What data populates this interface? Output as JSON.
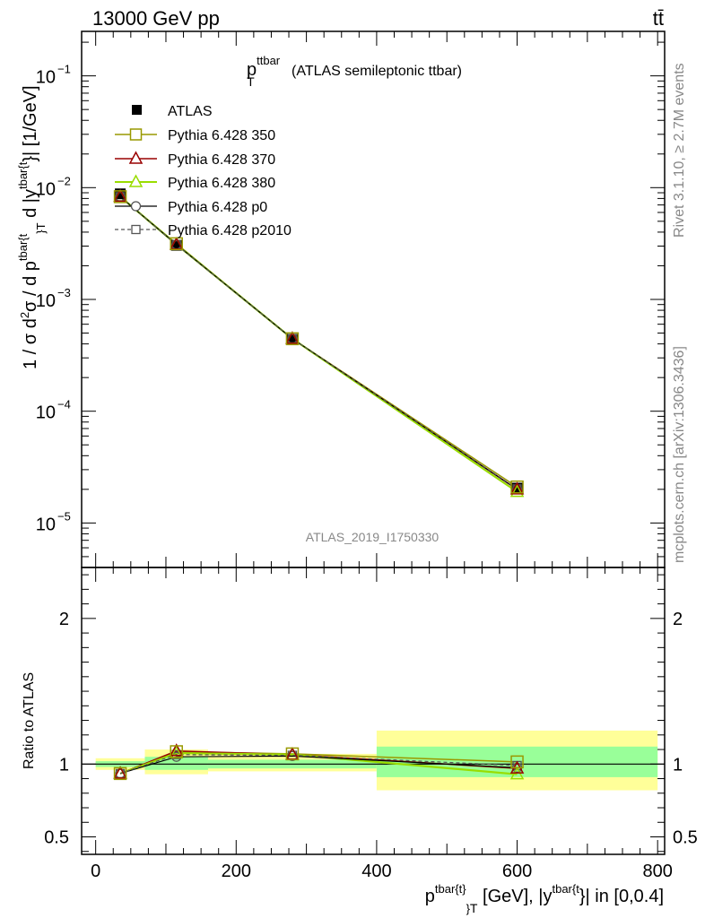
{
  "header": {
    "energy_label": "13000 GeV pp",
    "process_label": "tt̄"
  },
  "side_labels": {
    "rivet": "Rivet 3.1.10, ≥ 2.7M events",
    "mcplots": "mcplots.cern.ch [arXiv:1306.3436]"
  },
  "colors": {
    "data": "#000000",
    "band_yellow": "#ffff99",
    "band_green": "#99ff99",
    "p350": "#999900",
    "p370": "#990000",
    "p380": "#99dd00",
    "p0": "#000000",
    "p2010": "#555555"
  },
  "chart_data": [
    {
      "type": "line",
      "panel": "main",
      "title_main": "p",
      "title_sup": "ttbar",
      "title_sub": "T",
      "title_rest": "(ATLAS semileptonic ttbar)",
      "ylabel_parts": [
        "1 / σ d",
        "2",
        "σ / d p",
        "tbar{t",
        "}",
        "T",
        " d |y",
        "tbar{t",
        "}| [1/GeV]"
      ],
      "yscale": "log",
      "ylim": [
        4e-06,
        0.25
      ],
      "xlim": [
        -20,
        810
      ],
      "ytick_labels": [
        {
          "base": "10",
          "exp": "−1",
          "value": 0.1
        },
        {
          "base": "10",
          "exp": "−2",
          "value": 0.01
        },
        {
          "base": "10",
          "exp": "−3",
          "value": 0.001
        },
        {
          "base": "10",
          "exp": "−4",
          "value": 0.0001
        },
        {
          "base": "10",
          "exp": "−5",
          "value": 1e-05
        }
      ],
      "watermark": "ATLAS_2019_I1750330",
      "x": [
        35,
        115,
        280,
        600
      ],
      "series": [
        {
          "name": "ATLAS",
          "key": "data",
          "marker": "square-filled",
          "values": [
            0.0088,
            0.00305,
            0.00044,
            2.05e-05
          ]
        },
        {
          "name": "Pythia 6.428 350",
          "key": "p350",
          "marker": "square-open",
          "values": [
            0.0083,
            0.00315,
            0.000445,
            2.1e-05
          ]
        },
        {
          "name": "Pythia 6.428 370",
          "key": "p370",
          "marker": "triangle-open",
          "values": [
            0.0083,
            0.0031,
            0.000445,
            2e-05
          ]
        },
        {
          "name": "Pythia 6.428 380",
          "key": "p380",
          "marker": "triangle-open",
          "values": [
            0.0083,
            0.0031,
            0.000445,
            1.9e-05
          ]
        },
        {
          "name": "Pythia 6.428 p0",
          "key": "p0",
          "marker": "circle-open",
          "values": [
            0.0083,
            0.0031,
            0.000445,
            2e-05
          ]
        },
        {
          "name": "Pythia 6.428 p2010",
          "key": "p2010",
          "marker": "square-open-dashed",
          "values": [
            0.0083,
            0.00308,
            0.000445,
            2.02e-05
          ]
        }
      ]
    },
    {
      "type": "line",
      "panel": "ratio",
      "ylabel": "Ratio to ATLAS",
      "ylim": [
        0.38,
        2.35
      ],
      "xlim": [
        -20,
        810
      ],
      "ytick_labels": [
        {
          "label": "2",
          "value": 2
        },
        {
          "label": "1",
          "value": 1
        },
        {
          "label": "0.5",
          "value": 0.5
        }
      ],
      "xtick_labels": [
        {
          "label": "0",
          "value": 0
        },
        {
          "label": "200",
          "value": 200
        },
        {
          "label": "400",
          "value": 400
        },
        {
          "label": "600",
          "value": 600
        },
        {
          "label": "800",
          "value": 800
        }
      ],
      "xlabel_parts": [
        "p",
        "tbar{t}",
        "}",
        "T",
        " [GeV], |y",
        "tbar{t",
        "}| in [0,0.4]"
      ],
      "bins": [
        [
          0,
          70
        ],
        [
          70,
          160
        ],
        [
          160,
          400
        ],
        [
          400,
          800
        ]
      ],
      "band_yellow": [
        [
          0.96,
          1.04
        ],
        [
          0.93,
          1.1
        ],
        [
          0.95,
          1.07
        ],
        [
          0.82,
          1.23
        ]
      ],
      "band_green": [
        [
          0.98,
          1.02
        ],
        [
          0.96,
          1.05
        ],
        [
          0.97,
          1.03
        ],
        [
          0.91,
          1.12
        ]
      ],
      "x": [
        35,
        115,
        280,
        600
      ],
      "series": [
        {
          "name": "Pythia 6.428 350",
          "key": "p350",
          "values": [
            0.935,
            1.085,
            1.07,
            1.015
          ]
        },
        {
          "name": "Pythia 6.428 370",
          "key": "p370",
          "values": [
            0.935,
            1.09,
            1.065,
            0.97
          ]
        },
        {
          "name": "Pythia 6.428 380",
          "key": "p380",
          "values": [
            0.935,
            1.075,
            1.065,
            0.93
          ]
        },
        {
          "name": "Pythia 6.428 p0",
          "key": "p0",
          "values": [
            0.935,
            1.05,
            1.055,
            0.975
          ]
        },
        {
          "name": "Pythia 6.428 p2010",
          "key": "p2010",
          "values": [
            0.935,
            1.065,
            1.06,
            0.99
          ]
        }
      ]
    }
  ]
}
